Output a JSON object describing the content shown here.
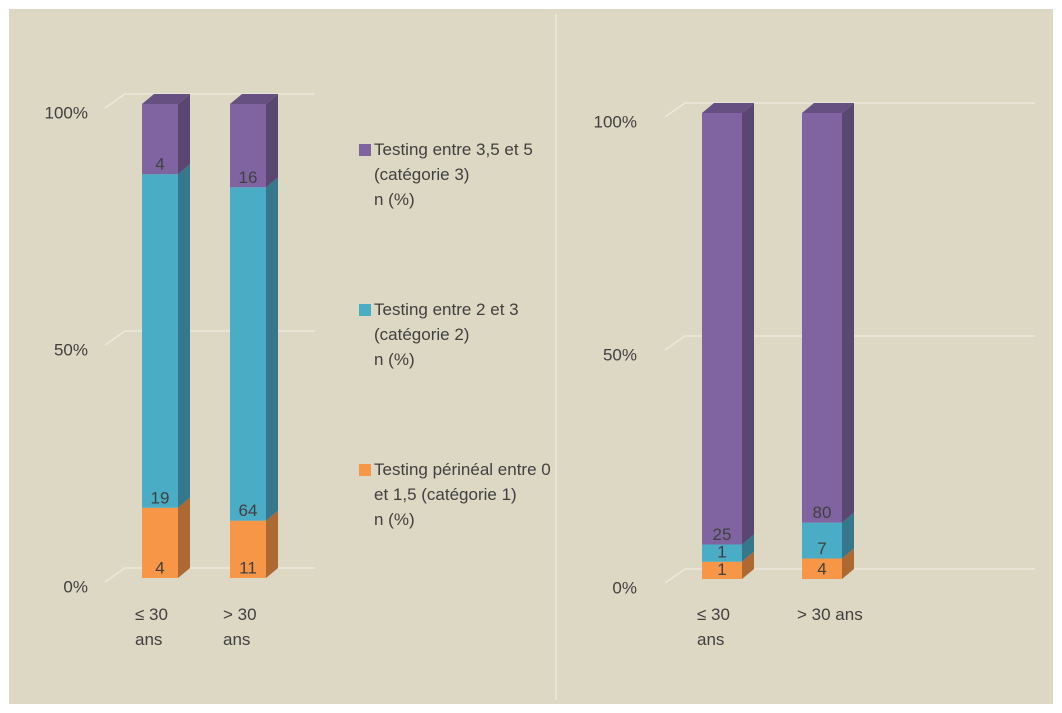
{
  "chart_data": [
    {
      "type": "bar",
      "stacking": "percent",
      "categories": [
        "≤ 30 ans",
        "> 30 ans"
      ],
      "series": [
        {
          "name": "Testing périnéal entre 0 et 1,5 (catégorie 1)\nn (%)",
          "color": "#f79646",
          "values": [
            4,
            11
          ]
        },
        {
          "name": "Testing entre 2 et 3 (catégorie 2)\nn (%)",
          "color": "#4bacc6",
          "values": [
            19,
            64
          ]
        },
        {
          "name": "Testing entre 3,5 et 5 (catégorie 3)\nn (%)",
          "color": "#8064a2",
          "values": [
            4,
            16
          ]
        }
      ],
      "ylim": [
        0,
        100
      ],
      "yticks": [
        {
          "value": 0,
          "label": "0%"
        },
        {
          "value": 50,
          "label": "50%"
        },
        {
          "value": 100,
          "label": "100%"
        }
      ],
      "grid": true,
      "legend": "right"
    },
    {
      "type": "bar",
      "stacking": "percent",
      "categories": [
        "≤ 30 ans",
        "> 30 ans"
      ],
      "series": [
        {
          "color": "#f79646",
          "values": [
            1,
            4
          ]
        },
        {
          "color": "#4bacc6",
          "values": [
            1,
            7
          ]
        },
        {
          "color": "#8064a2",
          "values": [
            25,
            80
          ]
        }
      ],
      "ylim": [
        0,
        100
      ],
      "yticks": [
        {
          "value": 0,
          "label": "0%"
        },
        {
          "value": 50,
          "label": "50%"
        },
        {
          "value": 100,
          "label": "100%"
        }
      ],
      "grid": true
    }
  ]
}
